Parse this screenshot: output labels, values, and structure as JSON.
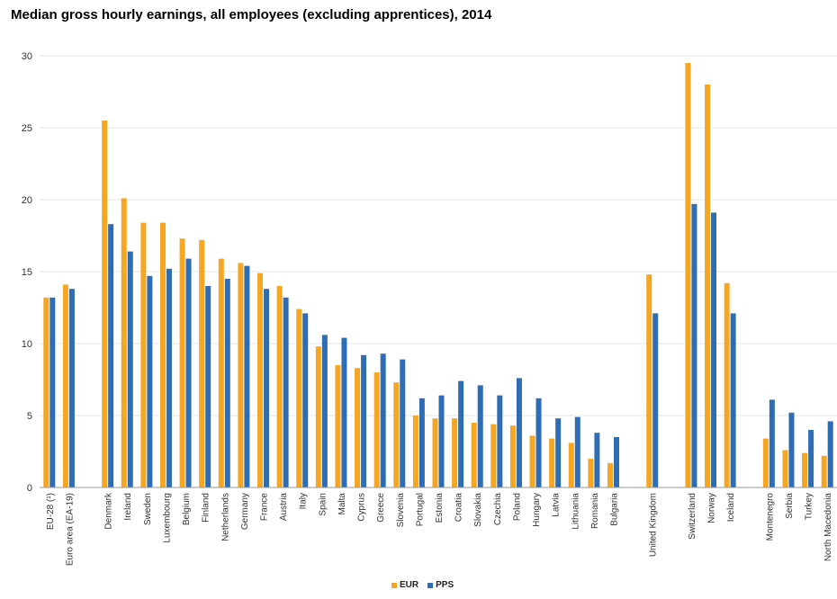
{
  "chart_data": {
    "type": "bar",
    "title": "Median gross hourly earnings, all employees (excluding apprentices), 2014",
    "ylim": [
      0,
      30
    ],
    "yticks": [
      0,
      5,
      10,
      15,
      20,
      25,
      30
    ],
    "grid": true,
    "legend_position": "bottom",
    "categories": [
      "EU-28 (¹)",
      "Euro area (EA-19)",
      "",
      "Denmark",
      "Ireland",
      "Sweden",
      "Luxembourg",
      "Belgium",
      "Finland",
      "Netherlands",
      "Germany",
      "France",
      "Austria",
      "Italy",
      "Spain",
      "Malta",
      "Cyprus",
      "Greece",
      "Slovenia",
      "Portugal",
      "Estonia",
      "Croatia",
      "Slovakia",
      "Czechia",
      "Poland",
      "Hungary",
      "Latvia",
      "Lithuania",
      "Romania",
      "Bulgaria",
      "",
      "United Kingdom",
      "",
      "Switzerland",
      "Norway",
      "Iceland",
      "",
      "Montenegro",
      "Serbia",
      "Turkey",
      "North Macedonia"
    ],
    "series": [
      {
        "name": "EUR",
        "color": "#f5a623",
        "values": [
          13.2,
          14.1,
          null,
          25.5,
          20.1,
          18.4,
          18.4,
          17.3,
          17.2,
          15.9,
          15.6,
          14.9,
          14.0,
          12.4,
          9.8,
          8.5,
          8.3,
          8.0,
          7.3,
          5.0,
          4.8,
          4.8,
          4.5,
          4.4,
          4.3,
          3.6,
          3.4,
          3.1,
          2.0,
          1.7,
          null,
          14.8,
          null,
          29.5,
          28.0,
          14.2,
          null,
          3.4,
          2.6,
          2.4,
          2.2
        ]
      },
      {
        "name": "PPS",
        "color": "#2e6db4",
        "values": [
          13.2,
          13.8,
          null,
          18.3,
          16.4,
          14.7,
          15.2,
          15.9,
          14.0,
          14.5,
          15.4,
          13.8,
          13.2,
          12.1,
          10.6,
          10.4,
          9.2,
          9.3,
          8.9,
          6.2,
          6.4,
          7.4,
          7.1,
          6.4,
          7.6,
          6.2,
          4.8,
          4.9,
          3.8,
          3.5,
          null,
          12.1,
          null,
          19.7,
          19.1,
          12.1,
          null,
          6.1,
          5.2,
          4.0,
          4.6
        ]
      }
    ]
  }
}
